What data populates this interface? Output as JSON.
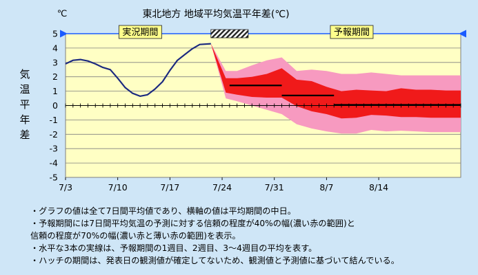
{
  "chart_data": {
    "type": "line",
    "title": "東北地方 地域平均気温平年差(℃)",
    "unit_label": "℃",
    "ylabel": "気温平年差",
    "ylim": [
      -5,
      5
    ],
    "y_ticks": [
      5,
      4,
      3,
      2,
      1,
      0,
      -1,
      -2,
      -3,
      -4,
      -5
    ],
    "x_range": [
      0,
      53
    ],
    "x_tick_labels": [
      {
        "x": 0,
        "label": "7/3"
      },
      {
        "x": 7,
        "label": "7/10"
      },
      {
        "x": 14,
        "label": "7/17"
      },
      {
        "x": 21,
        "label": "7/24"
      },
      {
        "x": 28,
        "label": "7/31"
      },
      {
        "x": 35,
        "label": "8/7"
      },
      {
        "x": 42,
        "label": "8/14"
      }
    ],
    "periods": {
      "observed_label": "実況期間",
      "observed_range": [
        0,
        19.5
      ],
      "hatch_range": [
        19.5,
        24.5
      ],
      "forecast_label": "予報期間",
      "forecast_range": [
        24.5,
        53
      ]
    },
    "observed": {
      "x": [
        0,
        1,
        2,
        3,
        4,
        5,
        6,
        7,
        8,
        9,
        10,
        11,
        12,
        13,
        14,
        15,
        16,
        17,
        18,
        19.5
      ],
      "y": [
        2.9,
        3.15,
        3.2,
        3.1,
        2.9,
        2.65,
        2.5,
        1.9,
        1.25,
        0.85,
        0.65,
        0.75,
        1.15,
        1.65,
        2.45,
        3.15,
        3.55,
        3.95,
        4.25,
        4.3
      ]
    },
    "forecast_band70": {
      "x": [
        19.5,
        21.5,
        23,
        25,
        27,
        29,
        31,
        33,
        35,
        37,
        39,
        41,
        43,
        45,
        47,
        49,
        51,
        53
      ],
      "upper": [
        4.3,
        2.4,
        2.4,
        2.8,
        3.15,
        3.35,
        2.4,
        2.5,
        2.4,
        2.2,
        2.2,
        2.3,
        2.2,
        2.1,
        2.1,
        2.1,
        2.1,
        2.1
      ],
      "lower": [
        4.3,
        0.5,
        0.3,
        0.0,
        -0.3,
        -0.6,
        -1.3,
        -1.6,
        -1.8,
        -1.95,
        -1.95,
        -1.7,
        -1.8,
        -1.75,
        -1.8,
        -1.85,
        -1.85,
        -1.85
      ]
    },
    "forecast_band40": {
      "x": [
        19.5,
        21.5,
        23,
        25,
        27,
        29,
        31,
        33,
        35,
        37,
        39,
        41,
        43,
        45,
        47,
        49,
        51,
        53
      ],
      "upper": [
        4.3,
        1.9,
        1.9,
        2.0,
        2.2,
        2.6,
        1.8,
        1.7,
        1.3,
        1.0,
        1.1,
        1.05,
        1.0,
        1.2,
        1.1,
        1.1,
        1.05,
        1.05
      ],
      "lower": [
        4.3,
        0.9,
        0.75,
        0.6,
        0.55,
        0.55,
        -0.05,
        -0.4,
        -0.6,
        -0.9,
        -0.85,
        -0.65,
        -0.7,
        -0.8,
        -0.8,
        -0.85,
        -0.85,
        -0.85
      ]
    },
    "weekly_means": [
      {
        "x0": 22,
        "x1": 29,
        "y": 1.4
      },
      {
        "x0": 29,
        "x1": 36,
        "y": 0.7
      },
      {
        "x0": 36,
        "x1": 53,
        "y": 0.05
      }
    ],
    "colors": {
      "background": "#cfe6f7",
      "plot_area": "#ffffc4",
      "observed_line": "#1c2a80",
      "band70": "#f79ac0",
      "band40": "#f01a1a",
      "weekly_mean": "#000000",
      "period_arrow": "#1a5bff",
      "period_label_box": "#ffff8c"
    }
  },
  "notes": [
    "・グラフの値は全て7日間平均値であり、横軸の値は平均期間の中日。",
    "・予報期間には7日間平均気温の予測に対する信頼の程度が40%の幅(濃い赤の範囲)と",
    "信頼の程度が70%の幅(濃い赤と薄い赤の範囲)を表示。",
    "・水平な3本の実線は、予報期間の1週目、2週目、3～4週目の平均を表す。",
    "・ハッチの期間は、発表日の観測値が確定してないため、観測値と予測値に基づいて結んでいる。"
  ]
}
